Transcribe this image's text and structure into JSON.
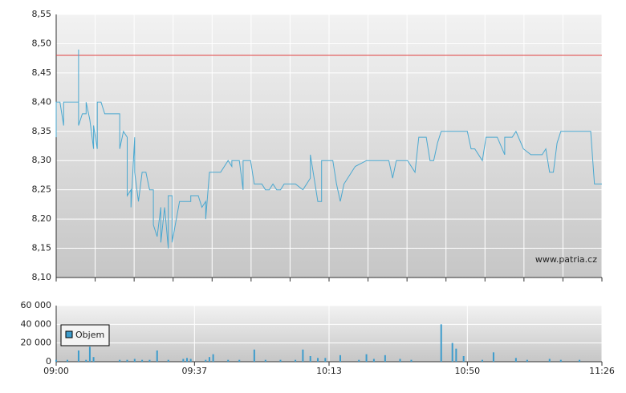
{
  "chart_data": [
    {
      "type": "line",
      "color": "#4aa8d0",
      "x": [
        "09:00",
        "09:00",
        "09:01",
        "09:02",
        "09:02",
        "09:06",
        "09:06",
        "09:06",
        "09:07",
        "09:08",
        "09:08",
        "09:09",
        "09:09",
        "09:10",
        "09:10",
        "09:11",
        "09:11",
        "09:12",
        "09:13",
        "09:17",
        "09:17",
        "09:18",
        "09:19",
        "09:19",
        "09:20",
        "09:20",
        "09:21",
        "09:21",
        "09:22",
        "09:23",
        "09:24",
        "09:25",
        "09:26",
        "09:26",
        "09:27",
        "09:27",
        "09:28",
        "09:28",
        "09:29",
        "09:29",
        "09:30",
        "09:30",
        "09:31",
        "09:31",
        "09:33",
        "09:36",
        "09:36",
        "09:38",
        "09:39",
        "09:40",
        "09:40",
        "09:41",
        "09:44",
        "09:46",
        "09:47",
        "09:47",
        "09:49",
        "09:50",
        "09:50",
        "09:52",
        "09:53",
        "09:55",
        "09:56",
        "09:57",
        "09:58",
        "09:59",
        "10:00",
        "10:01",
        "10:04",
        "10:06",
        "10:08",
        "10:08",
        "10:09",
        "10:10",
        "10:11",
        "10:11",
        "10:14",
        "10:15",
        "10:16",
        "10:16",
        "10:17",
        "10:20",
        "10:23",
        "10:29",
        "10:30",
        "10:31",
        "10:34",
        "10:36",
        "10:37",
        "10:39",
        "10:40",
        "10:41",
        "10:42",
        "10:43",
        "10:50",
        "10:51",
        "10:52",
        "10:54",
        "10:55",
        "10:58",
        "11:00",
        "11:00",
        "11:02",
        "11:03",
        "11:05",
        "11:07",
        "11:10",
        "11:11",
        "11:12",
        "11:13",
        "11:14",
        "11:15",
        "11:23",
        "11:24",
        "11:26"
      ],
      "values": [
        8.34,
        8.4,
        8.4,
        8.36,
        8.4,
        8.4,
        8.49,
        8.36,
        8.38,
        8.38,
        8.4,
        8.37,
        8.37,
        8.32,
        8.36,
        8.32,
        8.4,
        8.4,
        8.38,
        8.38,
        8.32,
        8.35,
        8.34,
        8.24,
        8.25,
        8.22,
        8.34,
        8.28,
        8.23,
        8.28,
        8.28,
        8.25,
        8.25,
        8.19,
        8.17,
        8.17,
        8.22,
        8.16,
        8.22,
        8.22,
        8.15,
        8.24,
        8.24,
        8.16,
        8.23,
        8.23,
        8.24,
        8.24,
        8.22,
        8.23,
        8.2,
        8.28,
        8.28,
        8.3,
        8.29,
        8.3,
        8.3,
        8.25,
        8.3,
        8.3,
        8.26,
        8.26,
        8.25,
        8.25,
        8.26,
        8.25,
        8.25,
        8.26,
        8.26,
        8.25,
        8.27,
        8.31,
        8.27,
        8.23,
        8.23,
        8.3,
        8.3,
        8.26,
        8.23,
        8.23,
        8.26,
        8.29,
        8.3,
        8.3,
        8.27,
        8.3,
        8.3,
        8.28,
        8.34,
        8.34,
        8.3,
        8.3,
        8.33,
        8.35,
        8.35,
        8.32,
        8.32,
        8.3,
        8.34,
        8.34,
        8.31,
        8.34,
        8.34,
        8.35,
        8.32,
        8.31,
        8.31,
        8.32,
        8.28,
        8.28,
        8.33,
        8.35,
        8.35,
        8.26,
        8.26
      ],
      "xlim": [
        "09:00",
        "11:26"
      ],
      "ylim": [
        8.1,
        8.55
      ],
      "yticks": [
        {
          "value": 8.1,
          "label": "8,10"
        },
        {
          "value": 8.15,
          "label": "8,15"
        },
        {
          "value": 8.2,
          "label": "8,20"
        },
        {
          "value": 8.25,
          "label": "8,25"
        },
        {
          "value": 8.3,
          "label": "8,30"
        },
        {
          "value": 8.35,
          "label": "8,35"
        },
        {
          "value": 8.4,
          "label": "8,40"
        },
        {
          "value": 8.45,
          "label": "8,45"
        },
        {
          "value": 8.5,
          "label": "8,50"
        },
        {
          "value": 8.55,
          "label": "8,55"
        }
      ],
      "reference_line": {
        "value": 8.48,
        "color": "#e04040"
      },
      "watermark": "www.patria.cz",
      "grid": true
    },
    {
      "type": "bar",
      "series": [
        {
          "name": "Objem",
          "color": "#3d9ccc",
          "x": [
            "09:00",
            "09:03",
            "09:06",
            "09:08",
            "09:09",
            "09:10",
            "09:17",
            "09:19",
            "09:21",
            "09:23",
            "09:25",
            "09:27",
            "09:30",
            "09:34",
            "09:35",
            "09:36",
            "09:40",
            "09:41",
            "09:42",
            "09:46",
            "09:49",
            "09:53",
            "09:56",
            "10:00",
            "10:04",
            "10:06",
            "10:08",
            "10:10",
            "10:12",
            "10:16",
            "10:21",
            "10:23",
            "10:25",
            "10:28",
            "10:32",
            "10:35",
            "10:43",
            "10:46",
            "10:47",
            "10:49",
            "10:54",
            "10:57",
            "11:03",
            "11:06",
            "11:12",
            "11:15",
            "11:20"
          ],
          "values": [
            2000,
            2000,
            12000,
            2000,
            16000,
            5000,
            2000,
            2000,
            3000,
            2000,
            2000,
            12000,
            2000,
            3000,
            4000,
            3000,
            2000,
            5000,
            8000,
            2000,
            2000,
            13000,
            2000,
            2000,
            2000,
            13000,
            6000,
            4000,
            4000,
            7000,
            2000,
            8000,
            3000,
            7000,
            3000,
            2000,
            40000,
            20000,
            14000,
            6000,
            2000,
            10000,
            4000,
            2000,
            3000,
            2000,
            2000
          ]
        }
      ],
      "xlim": [
        "09:00",
        "11:26"
      ],
      "xticks": [
        "09:00",
        "09:37",
        "10:13",
        "10:50",
        "11:26"
      ],
      "ylim": [
        0,
        60000
      ],
      "yticks": [
        0,
        {
          "value": 20000,
          "label": "20 000"
        },
        {
          "value": 40000,
          "label": "40 000"
        },
        {
          "value": 60000,
          "label": "60 000"
        }
      ],
      "grid": true
    }
  ]
}
